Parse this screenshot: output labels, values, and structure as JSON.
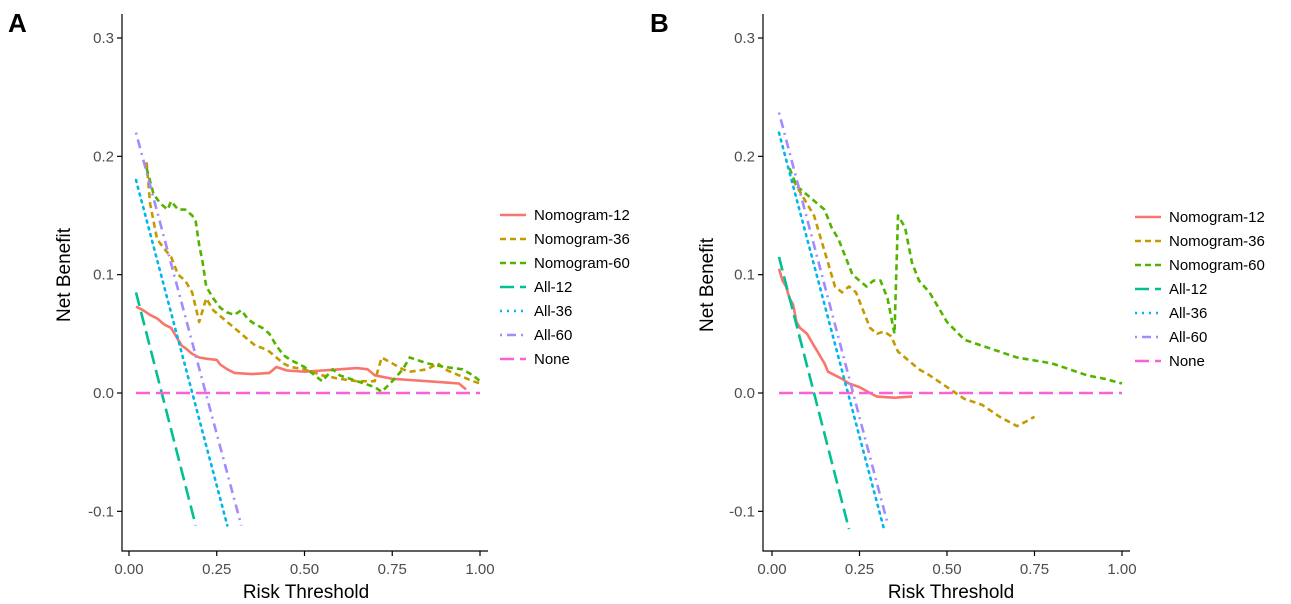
{
  "chart_data": [
    {
      "type": "line",
      "panel_label": "A",
      "xlabel": "Risk Threshold",
      "ylabel": "Net Benefit",
      "xlim": [
        0,
        1
      ],
      "ylim": [
        -0.13,
        0.32
      ],
      "x_ticks": [
        0,
        0.25,
        0.5,
        0.75,
        1
      ],
      "x_tick_labels": [
        "0.00",
        "0.25",
        "0.50",
        "0.75",
        "1.00"
      ],
      "y_ticks": [
        -0.1,
        0,
        0.1,
        0.2,
        0.3
      ],
      "y_tick_labels": [
        "-0.1",
        "0.0",
        "0.1",
        "0.2",
        "0.3"
      ],
      "grid": false,
      "legend_position": "right",
      "series": [
        {
          "name": "Nomogram-12",
          "color": "#F8766D",
          "dash": "solid",
          "points": [
            [
              0.02,
              0.073
            ],
            [
              0.04,
              0.07
            ],
            [
              0.06,
              0.066
            ],
            [
              0.08,
              0.063
            ],
            [
              0.1,
              0.058
            ],
            [
              0.12,
              0.055
            ],
            [
              0.13,
              0.05
            ],
            [
              0.14,
              0.045
            ],
            [
              0.15,
              0.04
            ],
            [
              0.16,
              0.038
            ],
            [
              0.18,
              0.033
            ],
            [
              0.2,
              0.03
            ],
            [
              0.22,
              0.029
            ],
            [
              0.25,
              0.028
            ],
            [
              0.26,
              0.024
            ],
            [
              0.28,
              0.02
            ],
            [
              0.3,
              0.017
            ],
            [
              0.35,
              0.016
            ],
            [
              0.4,
              0.017
            ],
            [
              0.42,
              0.022
            ],
            [
              0.45,
              0.019
            ],
            [
              0.5,
              0.018
            ],
            [
              0.55,
              0.019
            ],
            [
              0.6,
              0.02
            ],
            [
              0.65,
              0.021
            ],
            [
              0.68,
              0.02
            ],
            [
              0.7,
              0.015
            ],
            [
              0.75,
              0.012
            ],
            [
              0.8,
              0.011
            ],
            [
              0.85,
              0.01
            ],
            [
              0.9,
              0.009
            ],
            [
              0.94,
              0.008
            ],
            [
              0.96,
              0.003
            ]
          ]
        },
        {
          "name": "Nomogram-36",
          "color": "#C49A00",
          "dash": "dashed",
          "points": [
            [
              0.05,
              0.195
            ],
            [
              0.06,
              0.16
            ],
            [
              0.07,
              0.145
            ],
            [
              0.08,
              0.13
            ],
            [
              0.1,
              0.122
            ],
            [
              0.12,
              0.115
            ],
            [
              0.14,
              0.1
            ],
            [
              0.16,
              0.095
            ],
            [
              0.18,
              0.085
            ],
            [
              0.2,
              0.06
            ],
            [
              0.22,
              0.08
            ],
            [
              0.24,
              0.07
            ],
            [
              0.26,
              0.065
            ],
            [
              0.28,
              0.06
            ],
            [
              0.3,
              0.055
            ],
            [
              0.32,
              0.05
            ],
            [
              0.34,
              0.045
            ],
            [
              0.36,
              0.04
            ],
            [
              0.38,
              0.038
            ],
            [
              0.4,
              0.035
            ],
            [
              0.42,
              0.03
            ],
            [
              0.44,
              0.025
            ],
            [
              0.46,
              0.022
            ],
            [
              0.5,
              0.02
            ],
            [
              0.55,
              0.015
            ],
            [
              0.6,
              0.012
            ],
            [
              0.65,
              0.01
            ],
            [
              0.7,
              0.01
            ],
            [
              0.72,
              0.03
            ],
            [
              0.75,
              0.025
            ],
            [
              0.78,
              0.02
            ],
            [
              0.8,
              0.018
            ],
            [
              0.85,
              0.02
            ],
            [
              0.88,
              0.025
            ],
            [
              0.9,
              0.02
            ],
            [
              0.94,
              0.015
            ],
            [
              0.98,
              0.01
            ],
            [
              1.0,
              0.008
            ]
          ]
        },
        {
          "name": "Nomogram-60",
          "color": "#53B400",
          "dash": "dashed",
          "points": [
            [
              0.05,
              0.19
            ],
            [
              0.07,
              0.168
            ],
            [
              0.09,
              0.16
            ],
            [
              0.11,
              0.155
            ],
            [
              0.12,
              0.162
            ],
            [
              0.14,
              0.155
            ],
            [
              0.16,
              0.155
            ],
            [
              0.18,
              0.15
            ],
            [
              0.19,
              0.145
            ],
            [
              0.2,
              0.125
            ],
            [
              0.21,
              0.11
            ],
            [
              0.22,
              0.09
            ],
            [
              0.24,
              0.08
            ],
            [
              0.26,
              0.072
            ],
            [
              0.28,
              0.068
            ],
            [
              0.3,
              0.066
            ],
            [
              0.32,
              0.07
            ],
            [
              0.34,
              0.062
            ],
            [
              0.36,
              0.058
            ],
            [
              0.38,
              0.055
            ],
            [
              0.4,
              0.05
            ],
            [
              0.42,
              0.04
            ],
            [
              0.44,
              0.032
            ],
            [
              0.46,
              0.028
            ],
            [
              0.5,
              0.022
            ],
            [
              0.55,
              0.01
            ],
            [
              0.58,
              0.02
            ],
            [
              0.6,
              0.015
            ],
            [
              0.65,
              0.01
            ],
            [
              0.7,
              0.005
            ],
            [
              0.72,
              0.001
            ],
            [
              0.75,
              0.01
            ],
            [
              0.78,
              0.02
            ],
            [
              0.8,
              0.03
            ],
            [
              0.85,
              0.025
            ],
            [
              0.9,
              0.022
            ],
            [
              0.95,
              0.02
            ],
            [
              0.98,
              0.015
            ],
            [
              1.0,
              0.01
            ]
          ]
        },
        {
          "name": "All-12",
          "color": "#00C094",
          "dash": "longdash",
          "points": [
            [
              0.02,
              0.085
            ],
            [
              0.19,
              -0.112
            ]
          ]
        },
        {
          "name": "All-36",
          "color": "#00B6EB",
          "dash": "dotted",
          "points": [
            [
              0.02,
              0.18
            ],
            [
              0.28,
              -0.112
            ]
          ]
        },
        {
          "name": "All-60",
          "color": "#A58AFF",
          "dash": "dotdash",
          "points": [
            [
              0.02,
              0.22
            ],
            [
              0.32,
              -0.112
            ]
          ]
        },
        {
          "name": "None",
          "color": "#FB61D7",
          "dash": "longdash",
          "points": [
            [
              0.02,
              0.0
            ],
            [
              1.0,
              0.0
            ]
          ]
        }
      ]
    },
    {
      "type": "line",
      "panel_label": "B",
      "xlabel": "Risk Threshold",
      "ylabel": "Net Benefit",
      "xlim": [
        0,
        1
      ],
      "ylim": [
        -0.13,
        0.32
      ],
      "x_ticks": [
        0,
        0.25,
        0.5,
        0.75,
        1
      ],
      "x_tick_labels": [
        "0.00",
        "0.25",
        "0.50",
        "0.75",
        "1.00"
      ],
      "y_ticks": [
        -0.1,
        0,
        0.1,
        0.2,
        0.3
      ],
      "y_tick_labels": [
        "-0.1",
        "0.0",
        "0.1",
        "0.2",
        "0.3"
      ],
      "grid": false,
      "legend_position": "right",
      "series": [
        {
          "name": "Nomogram-12",
          "color": "#F8766D",
          "dash": "solid",
          "points": [
            [
              0.02,
              0.105
            ],
            [
              0.03,
              0.095
            ],
            [
              0.04,
              0.09
            ],
            [
              0.05,
              0.08
            ],
            [
              0.06,
              0.075
            ],
            [
              0.07,
              0.06
            ],
            [
              0.08,
              0.055
            ],
            [
              0.1,
              0.05
            ],
            [
              0.11,
              0.045
            ],
            [
              0.12,
              0.04
            ],
            [
              0.13,
              0.035
            ],
            [
              0.14,
              0.03
            ],
            [
              0.15,
              0.025
            ],
            [
              0.16,
              0.018
            ],
            [
              0.18,
              0.015
            ],
            [
              0.2,
              0.012
            ],
            [
              0.22,
              0.008
            ],
            [
              0.25,
              0.005
            ],
            [
              0.28,
              0.0
            ],
            [
              0.3,
              -0.003
            ],
            [
              0.35,
              -0.004
            ],
            [
              0.4,
              -0.003
            ]
          ]
        },
        {
          "name": "Nomogram-36",
          "color": "#C49A00",
          "dash": "dashed",
          "points": [
            [
              0.06,
              0.18
            ],
            [
              0.08,
              0.17
            ],
            [
              0.1,
              0.16
            ],
            [
              0.12,
              0.15
            ],
            [
              0.14,
              0.13
            ],
            [
              0.16,
              0.11
            ],
            [
              0.18,
              0.09
            ],
            [
              0.2,
              0.085
            ],
            [
              0.22,
              0.09
            ],
            [
              0.24,
              0.085
            ],
            [
              0.26,
              0.07
            ],
            [
              0.28,
              0.055
            ],
            [
              0.3,
              0.05
            ],
            [
              0.32,
              0.052
            ],
            [
              0.34,
              0.048
            ],
            [
              0.36,
              0.035
            ],
            [
              0.38,
              0.03
            ],
            [
              0.4,
              0.025
            ],
            [
              0.42,
              0.02
            ],
            [
              0.45,
              0.015
            ],
            [
              0.5,
              0.005
            ],
            [
              0.55,
              -0.005
            ],
            [
              0.6,
              -0.01
            ],
            [
              0.65,
              -0.02
            ],
            [
              0.7,
              -0.028
            ],
            [
              0.72,
              -0.025
            ],
            [
              0.75,
              -0.02
            ]
          ]
        },
        {
          "name": "Nomogram-60",
          "color": "#53B400",
          "dash": "dashed",
          "points": [
            [
              0.05,
              0.19
            ],
            [
              0.07,
              0.175
            ],
            [
              0.09,
              0.17
            ],
            [
              0.11,
              0.165
            ],
            [
              0.13,
              0.16
            ],
            [
              0.15,
              0.155
            ],
            [
              0.17,
              0.14
            ],
            [
              0.19,
              0.13
            ],
            [
              0.21,
              0.115
            ],
            [
              0.23,
              0.1
            ],
            [
              0.25,
              0.095
            ],
            [
              0.27,
              0.09
            ],
            [
              0.29,
              0.095
            ],
            [
              0.31,
              0.095
            ],
            [
              0.33,
              0.08
            ],
            [
              0.35,
              0.05
            ],
            [
              0.36,
              0.15
            ],
            [
              0.38,
              0.14
            ],
            [
              0.4,
              0.11
            ],
            [
              0.42,
              0.095
            ],
            [
              0.45,
              0.085
            ],
            [
              0.5,
              0.06
            ],
            [
              0.55,
              0.045
            ],
            [
              0.6,
              0.04
            ],
            [
              0.7,
              0.03
            ],
            [
              0.8,
              0.025
            ],
            [
              0.85,
              0.02
            ],
            [
              0.9,
              0.015
            ],
            [
              0.95,
              0.012
            ],
            [
              1.0,
              0.008
            ]
          ]
        },
        {
          "name": "All-12",
          "color": "#00C094",
          "dash": "longdash",
          "points": [
            [
              0.02,
              0.115
            ],
            [
              0.22,
              -0.115
            ]
          ]
        },
        {
          "name": "All-36",
          "color": "#00B6EB",
          "dash": "dotted",
          "points": [
            [
              0.02,
              0.22
            ],
            [
              0.32,
              -0.115
            ]
          ]
        },
        {
          "name": "All-60",
          "color": "#A58AFF",
          "dash": "dotdash",
          "points": [
            [
              0.02,
              0.237
            ],
            [
              0.33,
              -0.11
            ]
          ]
        },
        {
          "name": "None",
          "color": "#FB61D7",
          "dash": "longdash",
          "points": [
            [
              0.02,
              0.0
            ],
            [
              1.0,
              0.0
            ]
          ]
        }
      ]
    }
  ]
}
